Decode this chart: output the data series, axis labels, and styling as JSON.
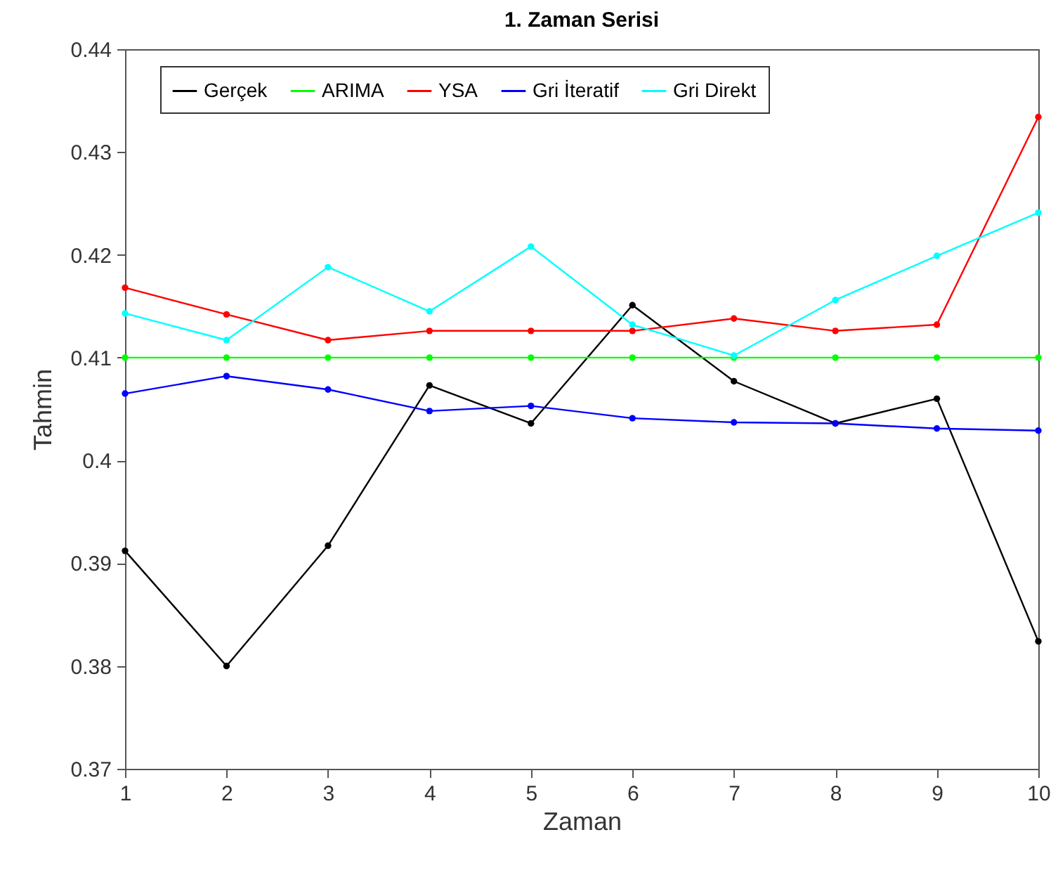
{
  "chart_data": {
    "type": "line",
    "title": "1. Zaman Serisi",
    "xlabel": "Zaman",
    "ylabel": "Tahmin",
    "x": [
      1,
      2,
      3,
      4,
      5,
      6,
      7,
      8,
      9,
      10
    ],
    "series": [
      {
        "name": "Gerçek",
        "color": "#000000",
        "values": [
          0.3912,
          0.38,
          0.3917,
          0.4073,
          0.4036,
          0.4151,
          0.4077,
          0.4036,
          0.406,
          0.3824
        ]
      },
      {
        "name": "ARIMA",
        "color": "#00ff00",
        "values": [
          0.41,
          0.41,
          0.41,
          0.41,
          0.41,
          0.41,
          0.41,
          0.41,
          0.41,
          0.41
        ]
      },
      {
        "name": "YSA",
        "color": "#ff0000",
        "values": [
          0.4168,
          0.4142,
          0.4117,
          0.4126,
          0.4126,
          0.4126,
          0.4138,
          0.4126,
          0.4132,
          0.4334
        ]
      },
      {
        "name": "Gri İteratif",
        "color": "#0000ff",
        "values": [
          0.4065,
          0.4082,
          0.4069,
          0.4048,
          0.4053,
          0.4041,
          0.4037,
          0.4036,
          0.4031,
          0.4029
        ]
      },
      {
        "name": "Gri Direkt",
        "color": "#00ffff",
        "values": [
          0.4143,
          0.4117,
          0.4188,
          0.4145,
          0.4208,
          0.4132,
          0.4102,
          0.4156,
          0.4199,
          0.4241
        ]
      }
    ],
    "xlim": [
      1,
      10
    ],
    "xticks": [
      1,
      2,
      3,
      4,
      5,
      6,
      7,
      8,
      9,
      10
    ],
    "ylim": [
      0.37,
      0.44
    ],
    "yticks": [
      0.37,
      0.38,
      0.39,
      0.4,
      0.41,
      0.42,
      0.43,
      0.44
    ],
    "legend": "top",
    "marker": "circle",
    "line_style": "solid",
    "grid": false
  }
}
